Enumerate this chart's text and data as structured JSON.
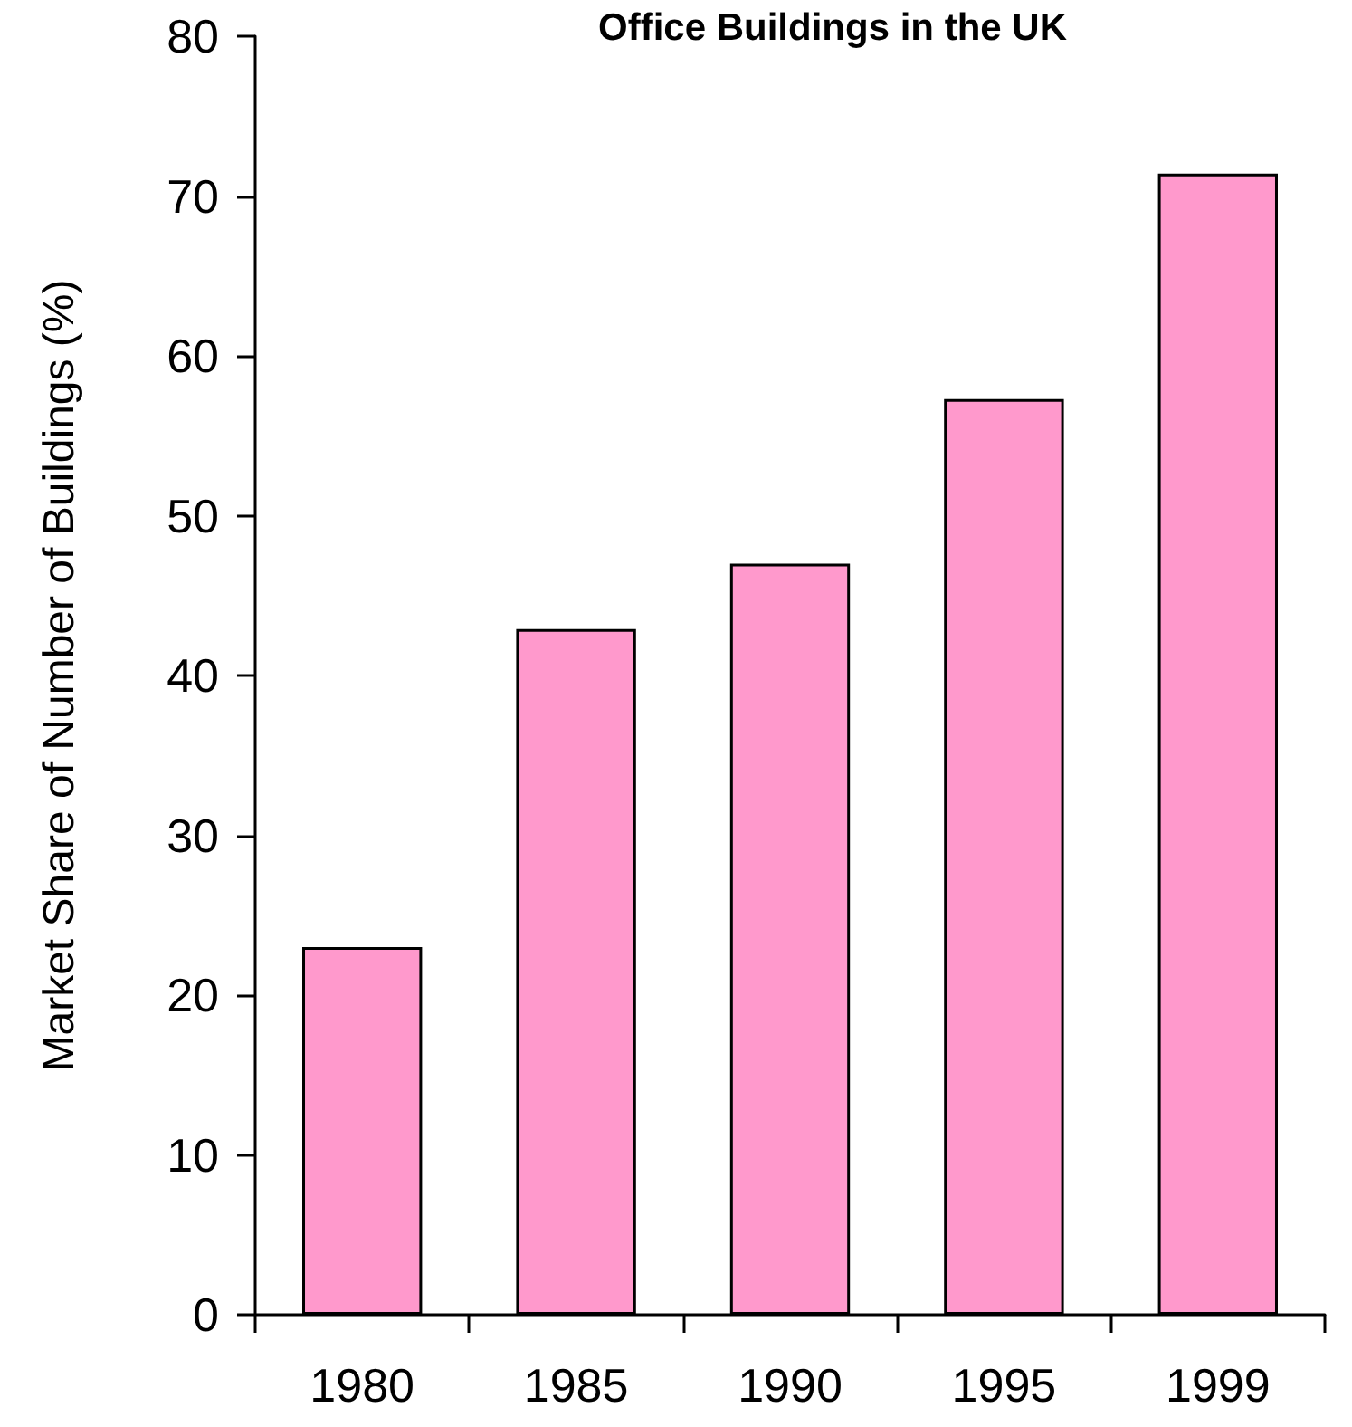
{
  "chart_data": {
    "type": "bar",
    "title": "Office Buildings in the UK",
    "ylabel": "Market Share of Number of Buildings (%)",
    "categories": [
      "1980",
      "1985",
      "1990",
      "1995",
      "1999"
    ],
    "values": [
      23,
      42.9,
      47,
      57.3,
      71.4
    ],
    "color": "#ff99cc",
    "ylim": [
      0,
      80
    ],
    "yticks": [
      0,
      10,
      20,
      30,
      40,
      50,
      60,
      70,
      80
    ]
  }
}
